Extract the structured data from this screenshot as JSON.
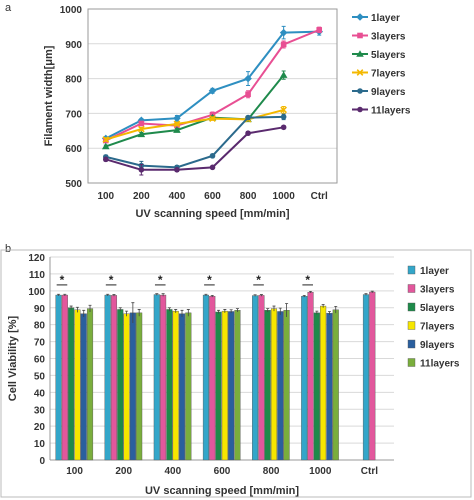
{
  "panels": {
    "a": "a",
    "b": "b"
  },
  "chart_data": [
    {
      "type": "line",
      "panel": "a",
      "title": "",
      "xlabel": "UV scanning speed [mm/min]",
      "ylabel": "Filament width[μm]",
      "categories": [
        "100",
        "200",
        "400",
        "600",
        "800",
        "1000",
        "Ctrl"
      ],
      "ylim": [
        500,
        1000
      ],
      "yticks": [
        500,
        600,
        700,
        800,
        900,
        1000
      ],
      "legend_position": "right",
      "series": [
        {
          "name": "1layer",
          "color": "#2e8fc1",
          "marker": "diamond",
          "values": [
            628,
            680,
            686,
            765,
            800,
            932,
            935
          ],
          "errors": [
            5,
            5,
            8,
            7,
            20,
            18,
            10
          ]
        },
        {
          "name": "3layers",
          "color": "#e84f93",
          "marker": "square",
          "values": [
            622,
            671,
            665,
            696,
            755,
            898,
            940
          ],
          "errors": [
            5,
            5,
            5,
            8,
            10,
            10,
            8
          ]
        },
        {
          "name": "5layers",
          "color": "#1f8a4c",
          "marker": "triangle",
          "values": [
            605,
            640,
            652,
            688,
            683,
            810,
            null
          ],
          "errors": [
            4,
            5,
            5,
            5,
            5,
            12,
            0
          ]
        },
        {
          "name": "7layers",
          "color": "#f3b800",
          "marker": "cross",
          "values": [
            625,
            655,
            670,
            685,
            683,
            710,
            null
          ],
          "errors": [
            5,
            5,
            5,
            5,
            5,
            10,
            0
          ]
        },
        {
          "name": "9layers",
          "color": "#2b6a8c",
          "marker": "circle",
          "values": [
            575,
            550,
            545,
            578,
            688,
            690,
            null
          ],
          "errors": [
            5,
            12,
            5,
            5,
            5,
            8,
            0
          ]
        },
        {
          "name": "11layers",
          "color": "#5a2a6e",
          "marker": "circle",
          "values": [
            568,
            538,
            538,
            545,
            643,
            660,
            null
          ],
          "errors": [
            5,
            15,
            5,
            3,
            5,
            5,
            0
          ]
        }
      ]
    },
    {
      "type": "bar",
      "panel": "b",
      "title": "",
      "xlabel": "UV scanning speed [mm/min]",
      "ylabel": "Cell Viability [%]",
      "categories": [
        "100",
        "200",
        "400",
        "600",
        "800",
        "1000",
        "Ctrl"
      ],
      "ylim": [
        0,
        120
      ],
      "yticks": [
        0,
        10,
        20,
        30,
        40,
        50,
        60,
        70,
        80,
        90,
        100,
        110,
        120
      ],
      "legend_position": "right",
      "significance_marker": "*",
      "significance_groups": [
        "100",
        "200",
        "400",
        "600",
        "800",
        "1000"
      ],
      "series": [
        {
          "name": "1layer",
          "color": "#33a6c9",
          "values": [
            97.5,
            97.5,
            97.8,
            97.5,
            97.2,
            96.8,
            97.8
          ],
          "errors": [
            0.5,
            0.5,
            0.5,
            0.5,
            0.5,
            0.5,
            0.5
          ]
        },
        {
          "name": "3layers",
          "color": "#e2579c",
          "values": [
            97.5,
            97.3,
            97.5,
            96.8,
            97.3,
            99.2,
            99.3
          ],
          "errors": [
            0.5,
            0.5,
            0.8,
            0.5,
            0.5,
            0.5,
            0.5
          ]
        },
        {
          "name": "5layers",
          "color": "#1e8a4a",
          "values": [
            90.0,
            89.0,
            89.0,
            87.5,
            88.5,
            87.0,
            null
          ],
          "errors": [
            1,
            1,
            1,
            1,
            1,
            1,
            0
          ]
        },
        {
          "name": "7layers",
          "color": "#f6e600",
          "values": [
            88.8,
            86.5,
            88.0,
            88.0,
            89.5,
            91.0,
            null
          ],
          "errors": [
            1.5,
            1.5,
            1,
            1,
            1.5,
            1,
            0
          ]
        },
        {
          "name": "9layers",
          "color": "#2a5f9e",
          "values": [
            86.5,
            87.0,
            86.5,
            87.8,
            87.8,
            86.8,
            null
          ],
          "errors": [
            2,
            6,
            2,
            1,
            2,
            1,
            0
          ]
        },
        {
          "name": "11layers",
          "color": "#7aae3c",
          "values": [
            89.5,
            87.0,
            87.0,
            88.5,
            88.5,
            88.8,
            null
          ],
          "errors": [
            2,
            2,
            2,
            1,
            4,
            2,
            0
          ]
        }
      ]
    }
  ]
}
